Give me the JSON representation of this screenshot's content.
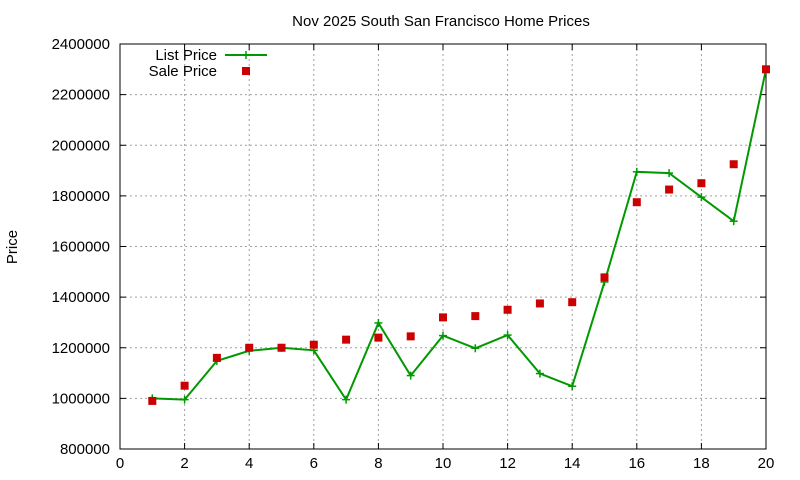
{
  "chart_data": {
    "type": "line",
    "title": "Nov 2025 South San Francisco Home Prices",
    "xlabel": "",
    "ylabel": "Price",
    "xlim": [
      0,
      20
    ],
    "ylim": [
      800000,
      2400000
    ],
    "x_ticks": [
      "0",
      "2",
      "4",
      "6",
      "8",
      "10",
      "12",
      "14",
      "16",
      "18",
      "20"
    ],
    "y_ticks": [
      "800000",
      "1000000",
      "1200000",
      "1400000",
      "1600000",
      "1800000",
      "2000000",
      "2200000",
      "2400000"
    ],
    "grid": true,
    "legend_position": "top-left",
    "x": [
      1,
      2,
      3,
      4,
      5,
      6,
      7,
      8,
      9,
      10,
      11,
      12,
      13,
      14,
      15,
      16,
      17,
      18,
      19,
      20
    ],
    "series": [
      {
        "name": "List Price",
        "style": "line+cross",
        "color": "#009900",
        "values": [
          1000000,
          995000,
          1148000,
          1188000,
          1200000,
          1190000,
          995000,
          1298000,
          1090000,
          1248000,
          1198000,
          1250000,
          1098000,
          1048000,
          1460000,
          1895000,
          1890000,
          1795000,
          1700000,
          2300000
        ]
      },
      {
        "name": "Sale Price",
        "style": "square-points",
        "color": "#cc0000",
        "values": [
          990000,
          1050000,
          1160000,
          1200000,
          1200000,
          1212000,
          1232000,
          1240000,
          1245000,
          1320000,
          1325000,
          1350000,
          1375000,
          1380000,
          1478000,
          1775000,
          1825000,
          1850000,
          1925000,
          2300000
        ]
      }
    ]
  }
}
